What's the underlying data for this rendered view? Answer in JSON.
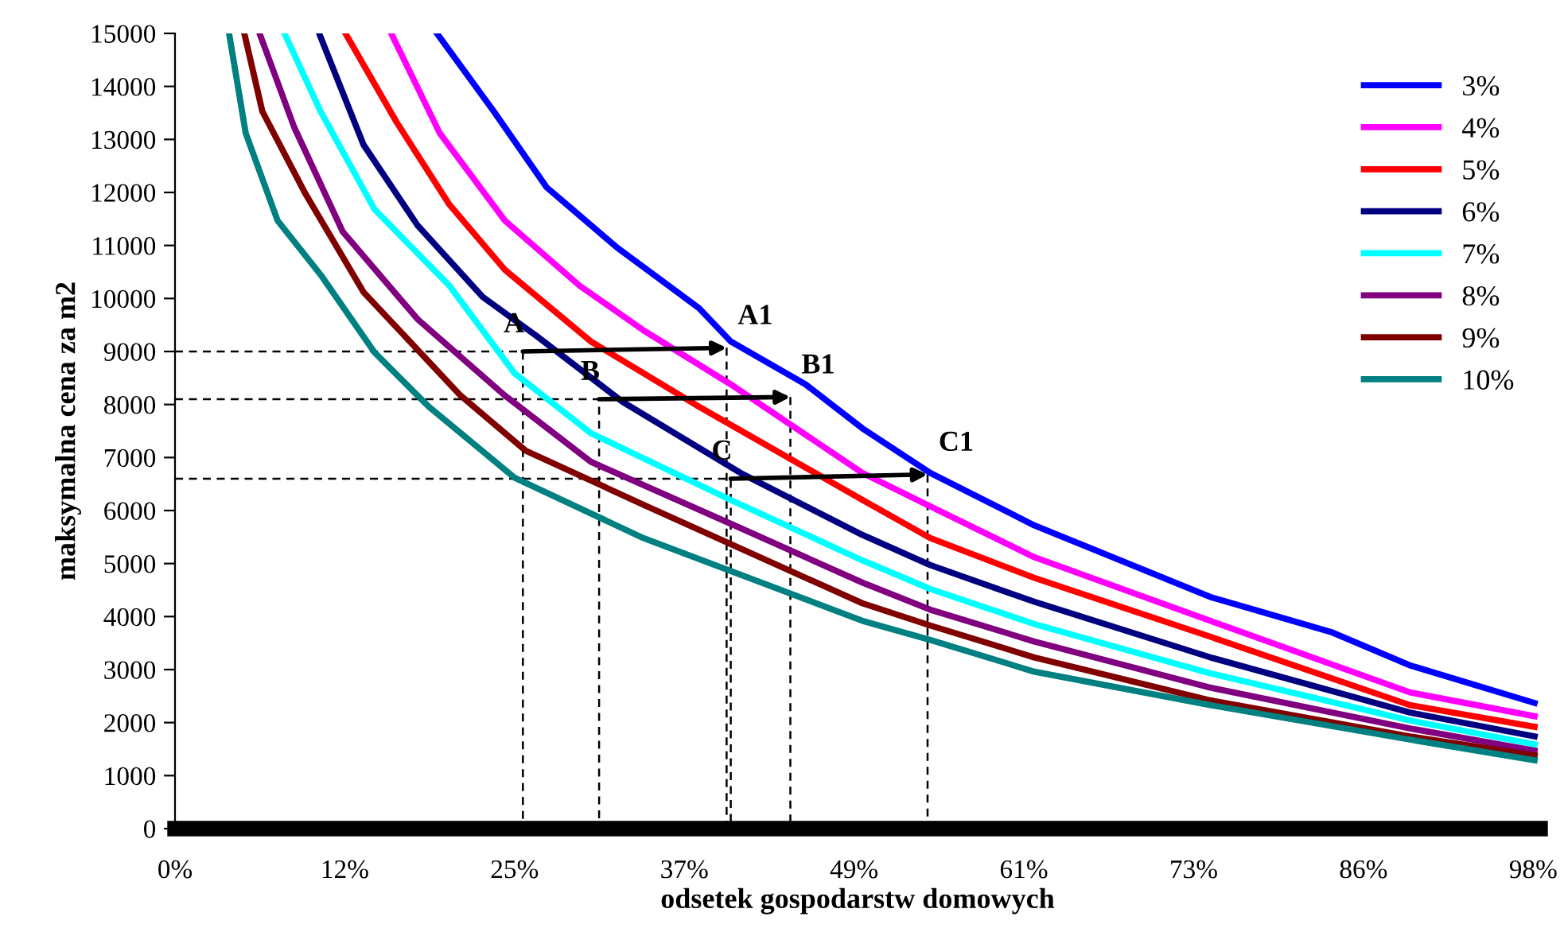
{
  "chart_data": {
    "type": "line",
    "xlabel": "odsetek gospodarstw domowych",
    "ylabel": "maksymalna cena za m2",
    "xlim": [
      0,
      98.5
    ],
    "xticks": [
      {
        "value": 0,
        "label": "0%"
      },
      {
        "value": 12.25,
        "label": "12%"
      },
      {
        "value": 24.5,
        "label": "25%"
      },
      {
        "value": 36.75,
        "label": "37%"
      },
      {
        "value": 49,
        "label": "49%"
      },
      {
        "value": 61.25,
        "label": "61%"
      },
      {
        "value": 73.5,
        "label": "73%"
      },
      {
        "value": 85.75,
        "label": "86%"
      },
      {
        "value": 98,
        "label": "98%"
      }
    ],
    "ylim": [
      0,
      15000
    ],
    "yticks": [
      0,
      1000,
      2000,
      3000,
      4000,
      5000,
      6000,
      7000,
      8000,
      9000,
      10000,
      11000,
      12000,
      13000,
      14000,
      15000
    ],
    "grid": false,
    "legend": "top right",
    "line_style": "solid",
    "series": [
      {
        "name": "3%",
        "color": "#0000ff",
        "x": [
          18.9,
          23.0,
          26.8,
          31.9,
          37.8,
          40.1,
          45.5,
          49.6,
          54.5,
          62.0,
          74.7,
          83.4,
          89.1,
          98.1
        ],
        "values": [
          15000,
          13530,
          12100,
          10960,
          9820,
          9190,
          8380,
          7550,
          6710,
          5720,
          4370,
          3710,
          3080,
          2370
        ]
      },
      {
        "name": "4%",
        "color": "#ff00ff",
        "x": [
          15.6,
          19.1,
          23.8,
          29.2,
          33.8,
          40.1,
          49.6,
          54.5,
          62.0,
          74.7,
          89.1,
          98.1
        ],
        "values": [
          15000,
          13120,
          11470,
          10240,
          9400,
          8380,
          6710,
          6080,
          5120,
          3920,
          2570,
          2120
        ]
      },
      {
        "name": "5%",
        "color": "#ff0000",
        "x": [
          12.3,
          16.0,
          19.8,
          23.8,
          30.0,
          37.8,
          49.6,
          54.5,
          62.0,
          74.7,
          89.1,
          98.1
        ],
        "values": [
          15000,
          13320,
          11770,
          10540,
          9190,
          7960,
          6200,
          5480,
          4730,
          3620,
          2330,
          1920
        ]
      },
      {
        "name": "6%",
        "color": "#000080",
        "x": [
          10.4,
          13.6,
          17.5,
          22.2,
          26.0,
          32.3,
          40.8,
          49.6,
          54.5,
          62.0,
          74.7,
          89.1,
          98.1
        ],
        "values": [
          15000,
          12900,
          11380,
          10030,
          9310,
          8050,
          6710,
          5540,
          4970,
          4280,
          3230,
          2190,
          1740
        ]
      },
      {
        "name": "7%",
        "color": "#00ffff",
        "x": [
          7.9,
          10.5,
          14.4,
          19.8,
          24.5,
          30.0,
          40.1,
          49.6,
          54.5,
          62.0,
          74.7,
          89.1,
          98.1
        ],
        "values": [
          15000,
          13530,
          11680,
          10240,
          8590,
          7460,
          6200,
          5060,
          4520,
          3860,
          2930,
          2040,
          1590
        ]
      },
      {
        "name": "8%",
        "color": "#800080",
        "x": [
          6.1,
          8.6,
          12.1,
          17.5,
          23.8,
          30.0,
          40.1,
          49.6,
          54.5,
          62.0,
          74.7,
          89.1,
          98.1
        ],
        "values": [
          15000,
          13230,
          11260,
          9610,
          8170,
          6920,
          5750,
          4640,
          4130,
          3530,
          2660,
          1890,
          1470
        ]
      },
      {
        "name": "9%",
        "color": "#800000",
        "x": [
          5.0,
          6.3,
          9.4,
          13.6,
          20.6,
          25.3,
          33.8,
          49.6,
          54.5,
          62.0,
          74.7,
          89.1,
          98.1
        ],
        "values": [
          15000,
          13530,
          11980,
          10120,
          8170,
          7130,
          6110,
          4250,
          3830,
          3230,
          2420,
          1740,
          1380
        ]
      },
      {
        "name": "10%",
        "color": "#008080",
        "x": [
          3.9,
          5.1,
          7.4,
          10.5,
          14.4,
          18.3,
          24.5,
          33.8,
          49.6,
          54.5,
          62.0,
          74.7,
          89.1,
          98.1
        ],
        "values": [
          15000,
          13120,
          11470,
          10450,
          8980,
          7960,
          6620,
          5480,
          3920,
          3560,
          2960,
          2330,
          1680,
          1290
        ]
      },
      {
        "color": "#000000",
        "line_style": "dashed",
        "x": [
          0,
          25.1,
          25.1
        ],
        "values": [
          9000,
          9000,
          0
        ]
      },
      {
        "color": "#000000",
        "line_style": "dashed",
        "x": [
          39.8,
          39.8
        ],
        "values": [
          9070,
          0
        ]
      },
      {
        "color": "#000000",
        "line_style": "dashed",
        "x": [
          0,
          30.6,
          30.6
        ],
        "values": [
          8100,
          8100,
          0
        ]
      },
      {
        "color": "#000000",
        "line_style": "dashed",
        "x": [
          44.4,
          44.4
        ],
        "values": [
          8140,
          0
        ]
      },
      {
        "color": "#000000",
        "line_style": "dashed",
        "x": [
          0,
          40.1,
          40.1
        ],
        "values": [
          6600,
          6600,
          0
        ]
      },
      {
        "color": "#000000",
        "line_style": "dashed",
        "x": [
          54.3,
          54.3
        ],
        "values": [
          6680,
          0
        ]
      }
    ],
    "annotations": [
      {
        "text": "A",
        "x": 25.1,
        "y": 9000
      },
      {
        "text": "A1",
        "x": 39.8,
        "y": 9070
      },
      {
        "text": "B",
        "x": 30.6,
        "y": 8100
      },
      {
        "text": "B1",
        "x": 44.4,
        "y": 8140
      },
      {
        "text": "C",
        "x": 40.1,
        "y": 6600
      },
      {
        "text": "C1",
        "x": 54.3,
        "y": 6680
      }
    ]
  }
}
